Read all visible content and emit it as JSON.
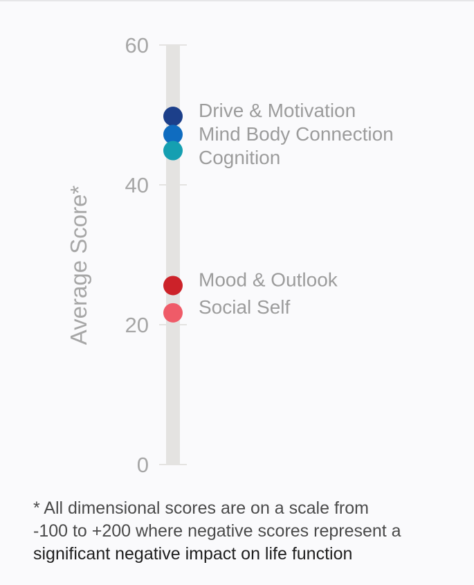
{
  "chart_data": {
    "type": "scatter",
    "title": "",
    "ylabel": "Average Score*",
    "ylim": [
      0,
      60
    ],
    "yticks": [
      0,
      20,
      40,
      60
    ],
    "grid": false,
    "legend": "direct labels to the right of points",
    "series": [
      {
        "name": "Drive & Motivation",
        "value": 49.8,
        "color": "#1c3f8a"
      },
      {
        "name": "Mind Body Connection",
        "value": 47.2,
        "color": "#0f6cc0"
      },
      {
        "name": "Cognition",
        "value": 44.9,
        "color": "#159fb1"
      },
      {
        "name": "Mood & Outlook",
        "value": 25.6,
        "color": "#cc2229"
      },
      {
        "name": "Social Self",
        "value": 21.7,
        "color": "#ef5b68"
      }
    ]
  },
  "footnote": {
    "line1": "* All dimensional scores are on a scale from",
    "line2": "-100 to +200 where negative scores represent a",
    "line3": "significant negative impact on life function"
  },
  "colors": {
    "track": "#e4e3e1",
    "axis_text": "#a6a6a6",
    "label_text": "#9c9c9c"
  }
}
